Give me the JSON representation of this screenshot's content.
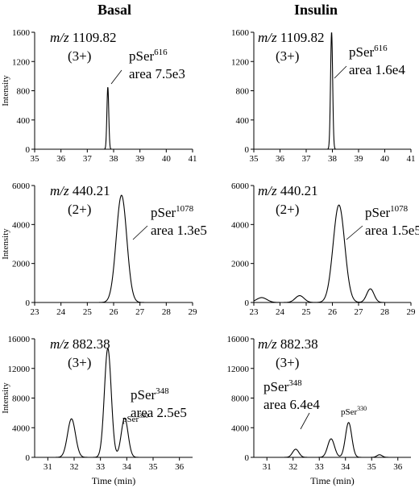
{
  "columns": [
    "Basal",
    "Insulin"
  ],
  "chart_data": [
    {
      "type": "line",
      "panel": "basal-1",
      "mz_label": "m/z",
      "mz_value": "1109.82",
      "charge": "(3+)",
      "peak_labels": [
        {
          "residue": "pSer",
          "site": "616",
          "area": "area 7.5e3"
        }
      ],
      "ylabel": "Intensity",
      "xlabel": "",
      "xlim": [
        35,
        41
      ],
      "ylim": [
        0,
        1600
      ],
      "xticks": [
        35,
        36,
        37,
        38,
        39,
        40,
        41
      ],
      "yticks": [
        0,
        400,
        800,
        1200,
        1600
      ],
      "peaks": [
        {
          "center": 37.78,
          "height": 850,
          "width": 0.035
        }
      ]
    },
    {
      "type": "line",
      "panel": "insulin-1",
      "mz_label": "m/z",
      "mz_value": "1109.82",
      "charge": "(3+)",
      "peak_labels": [
        {
          "residue": "pSer",
          "site": "616",
          "area": "area 1.6e4"
        }
      ],
      "ylabel": "",
      "xlabel": "",
      "xlim": [
        35,
        41
      ],
      "ylim": [
        0,
        1600
      ],
      "xticks": [
        35,
        36,
        37,
        38,
        39,
        40,
        41
      ],
      "yticks": [
        0,
        400,
        800,
        1200,
        1600
      ],
      "peaks": [
        {
          "center": 37.97,
          "height": 1600,
          "width": 0.04
        }
      ]
    },
    {
      "type": "line",
      "panel": "basal-2",
      "mz_label": "m/z",
      "mz_value": "440.21",
      "charge": "(2+)",
      "peak_labels": [
        {
          "residue": "pSer",
          "site": "1078",
          "area": "area 1.3e5"
        }
      ],
      "ylabel": "Intensity",
      "xlabel": "",
      "xlim": [
        23,
        29
      ],
      "ylim": [
        0,
        6000
      ],
      "xticks": [
        23,
        24,
        25,
        26,
        27,
        28,
        29
      ],
      "yticks": [
        0,
        2000,
        4000,
        6000
      ],
      "peaks": [
        {
          "center": 26.3,
          "height": 5500,
          "width": 0.2
        }
      ]
    },
    {
      "type": "line",
      "panel": "insulin-2",
      "mz_label": "m/z",
      "mz_value": "440.21",
      "charge": "(2+)",
      "peak_labels": [
        {
          "residue": "pSer",
          "site": "1078",
          "area": "area 1.5e5"
        }
      ],
      "ylabel": "",
      "xlabel": "",
      "xlim": [
        23,
        29
      ],
      "ylim": [
        0,
        6000
      ],
      "xticks": [
        23,
        24,
        25,
        26,
        27,
        28,
        29
      ],
      "yticks": [
        0,
        2000,
        4000,
        6000
      ],
      "peaks": [
        {
          "center": 23.3,
          "height": 250,
          "width": 0.2
        },
        {
          "center": 24.75,
          "height": 350,
          "width": 0.17
        },
        {
          "center": 26.25,
          "height": 5000,
          "width": 0.22
        },
        {
          "center": 27.45,
          "height": 700,
          "width": 0.14
        }
      ]
    },
    {
      "type": "line",
      "panel": "basal-3",
      "mz_label": "m/z",
      "mz_value": "882.38",
      "charge": "(3+)",
      "peak_labels": [
        {
          "residue": "pSer",
          "site": "348",
          "area": "area 2.5e5"
        },
        {
          "residue": "pSer",
          "site": "330",
          "area": ""
        }
      ],
      "ylabel": "Intensity",
      "xlabel": "Time (min)",
      "xlim": [
        30.5,
        36.5
      ],
      "ylim": [
        0,
        16000
      ],
      "xticks": [
        31,
        32,
        33,
        34,
        35,
        36
      ],
      "yticks": [
        0,
        4000,
        8000,
        12000,
        16000
      ],
      "peaks": [
        {
          "center": 31.9,
          "height": 5200,
          "width": 0.15
        },
        {
          "center": 33.28,
          "height": 14700,
          "width": 0.13
        },
        {
          "center": 33.92,
          "height": 5300,
          "width": 0.13
        }
      ]
    },
    {
      "type": "line",
      "panel": "insulin-3",
      "mz_label": "m/z",
      "mz_value": "882.38",
      "charge": "(3+)",
      "peak_labels": [
        {
          "residue": "pSer",
          "site": "348",
          "area": "area 6.4e4"
        },
        {
          "residue": "pSer",
          "site": "330",
          "area": ""
        }
      ],
      "ylabel": "",
      "xlabel": "Time (min)",
      "xlim": [
        30.5,
        36.5
      ],
      "ylim": [
        0,
        16000
      ],
      "xticks": [
        31,
        32,
        33,
        34,
        35,
        36
      ],
      "yticks": [
        0,
        4000,
        8000,
        12000,
        16000
      ],
      "peaks": [
        {
          "center": 32.1,
          "height": 1100,
          "width": 0.12
        },
        {
          "center": 33.45,
          "height": 2500,
          "width": 0.13
        },
        {
          "center": 34.12,
          "height": 4700,
          "width": 0.12
        },
        {
          "center": 35.3,
          "height": 350,
          "width": 0.1
        }
      ]
    }
  ]
}
